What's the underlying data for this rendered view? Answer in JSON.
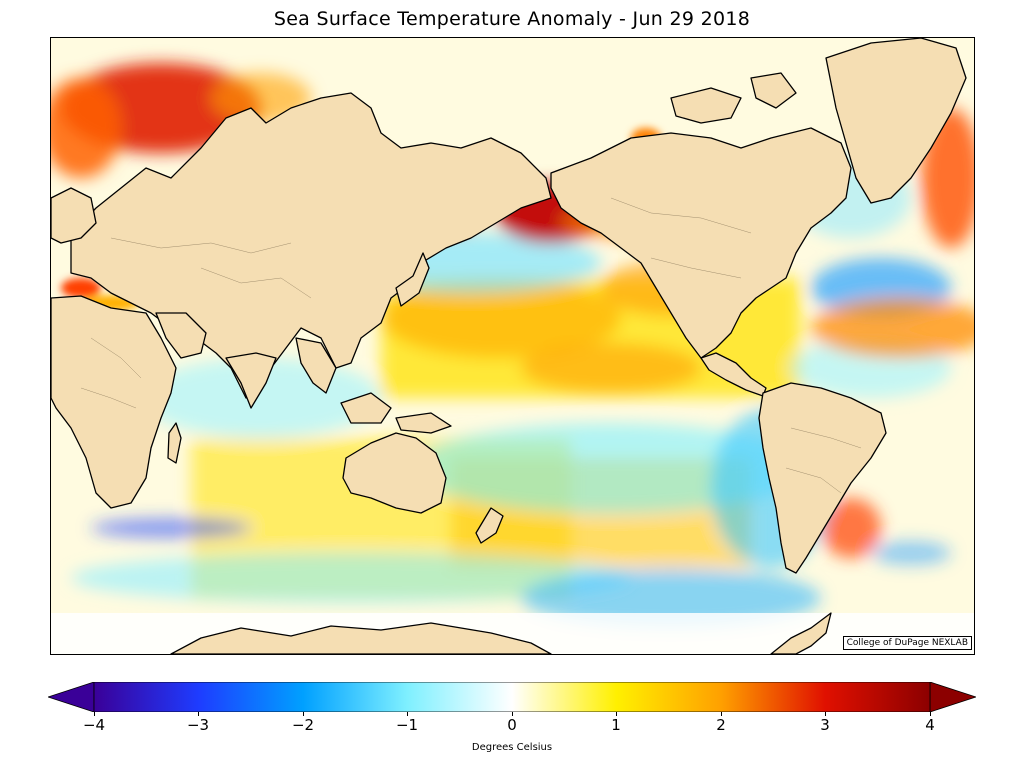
{
  "title": "Sea Surface Temperature Anomaly - Jun 29 2018",
  "map": {
    "credit": "College of DuPage NEXLAB",
    "land_color": "#f5deb3",
    "projection": "cylindrical, Pacific-centered"
  },
  "colorbar": {
    "label": "Degrees Celsius",
    "min": -4,
    "max": 4,
    "ticks": [
      "−4",
      "−3",
      "−2",
      "−1",
      "0",
      "1",
      "2",
      "3",
      "4"
    ],
    "colors": [
      "#3a0098",
      "#1e3cff",
      "#00a0ff",
      "#7ff0ff",
      "#ffffff",
      "#fff000",
      "#ffa000",
      "#e01000",
      "#8c0000"
    ]
  }
}
